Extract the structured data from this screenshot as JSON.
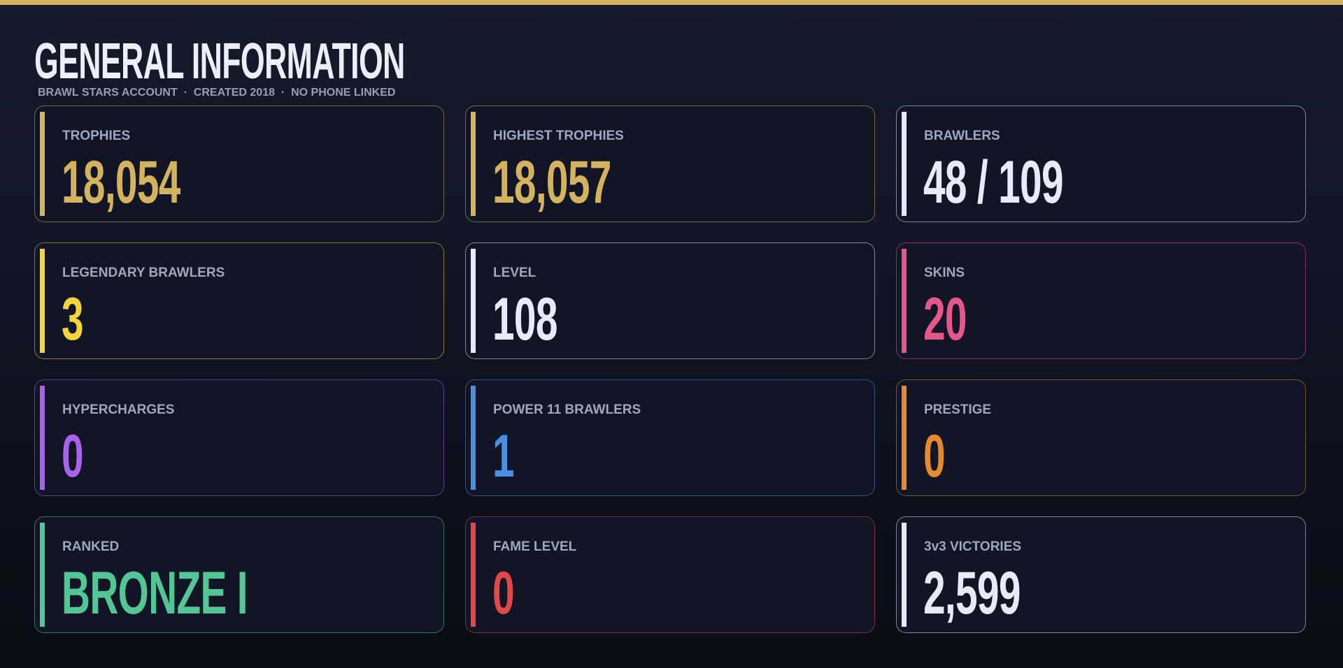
{
  "header": {
    "title": "GENERAL INFORMATION",
    "subtitle": "BRAWL STARS ACCOUNT  ·  CREATED 2018  ·  NO PHONE LINKED"
  },
  "cards": [
    {
      "label": "TROPHIES",
      "value": "18,054",
      "color": "#d4b35f"
    },
    {
      "label": "HIGHEST TROPHIES",
      "value": "18,057",
      "color": "#d4b35f"
    },
    {
      "label": "BRAWLERS",
      "value": "48 / 109",
      "color": "#e8eaf8"
    },
    {
      "label": "LEGENDARY BRAWLERS",
      "value": "3",
      "color": "#f5d33a"
    },
    {
      "label": "LEVEL",
      "value": "108",
      "color": "#e8eaf8"
    },
    {
      "label": "SKINS",
      "value": "20",
      "color": "#e3578a"
    },
    {
      "label": "HYPERCHARGES",
      "value": "0",
      "color": "#a862ec"
    },
    {
      "label": "POWER 11 BRAWLERS",
      "value": "1",
      "color": "#4a8fe2"
    },
    {
      "label": "PRESTIGE",
      "value": "0",
      "color": "#e68a2e"
    },
    {
      "label": "RANKED",
      "value": "BRONZE I",
      "color": "#52c795"
    },
    {
      "label": "FAME LEVEL",
      "value": "0",
      "color": "#e24848"
    },
    {
      "label": "3v3 VICTORIES",
      "value": "2,599",
      "color": "#e8eaf8"
    }
  ]
}
